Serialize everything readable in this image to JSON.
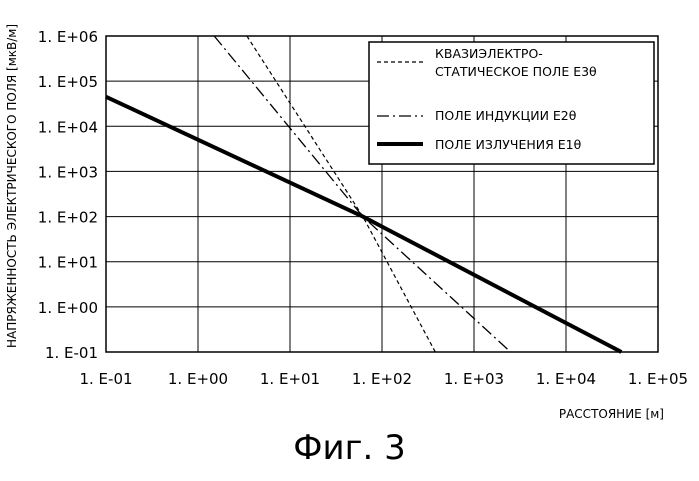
{
  "chart_data": {
    "type": "line",
    "x_scale": "log",
    "y_scale": "log",
    "xlim": [
      0.1,
      100000
    ],
    "ylim": [
      0.1,
      1000000
    ],
    "grid": true,
    "x_tick_labels": [
      "1. E-01",
      "1. E+00",
      "1. E+01",
      "1. E+02",
      "1. E+03",
      "1. E+04",
      "1. E+05"
    ],
    "y_tick_labels": [
      "1. E+06",
      "1. E+05",
      "1. E+04",
      "1. E+03",
      "1. E+02",
      "1. E+01",
      "1. E+00",
      "1. E-01"
    ],
    "xlabel": "РАССТОЯНИЕ [м]",
    "ylabel": "НАПРЯЖЕННОСТЬ ЭЛЕКТРИЧЕСКОГО ПОЛЯ [мкВ/м]",
    "legend_position": "top-right",
    "series": [
      {
        "name_lines": [
          "КВАЗИЭЛЕКТРО-",
          "СТАТИЧЕСКОЕ ПОЛЕ E3θ"
        ],
        "style": "dashed",
        "color": "#000000",
        "points": [
          [
            3.4,
            1000000
          ],
          [
            62,
            100
          ],
          [
            380,
            0.1
          ]
        ]
      },
      {
        "name_lines": [
          "ПОЛЕ ИНДУКЦИИ E2θ"
        ],
        "style": "dash-dot",
        "color": "#000000",
        "points": [
          [
            1.5,
            1000000
          ],
          [
            62,
            100
          ],
          [
            2500,
            0.1
          ]
        ]
      },
      {
        "name_lines": [
          "ПОЛЕ ИЗЛУЧЕНИЯ E1θ"
        ],
        "style": "solid-thick",
        "color": "#000000",
        "points": [
          [
            0.1,
            45000
          ],
          [
            62,
            100
          ],
          [
            40000,
            0.1
          ]
        ]
      }
    ]
  },
  "figure_caption": "Фиг. 3"
}
